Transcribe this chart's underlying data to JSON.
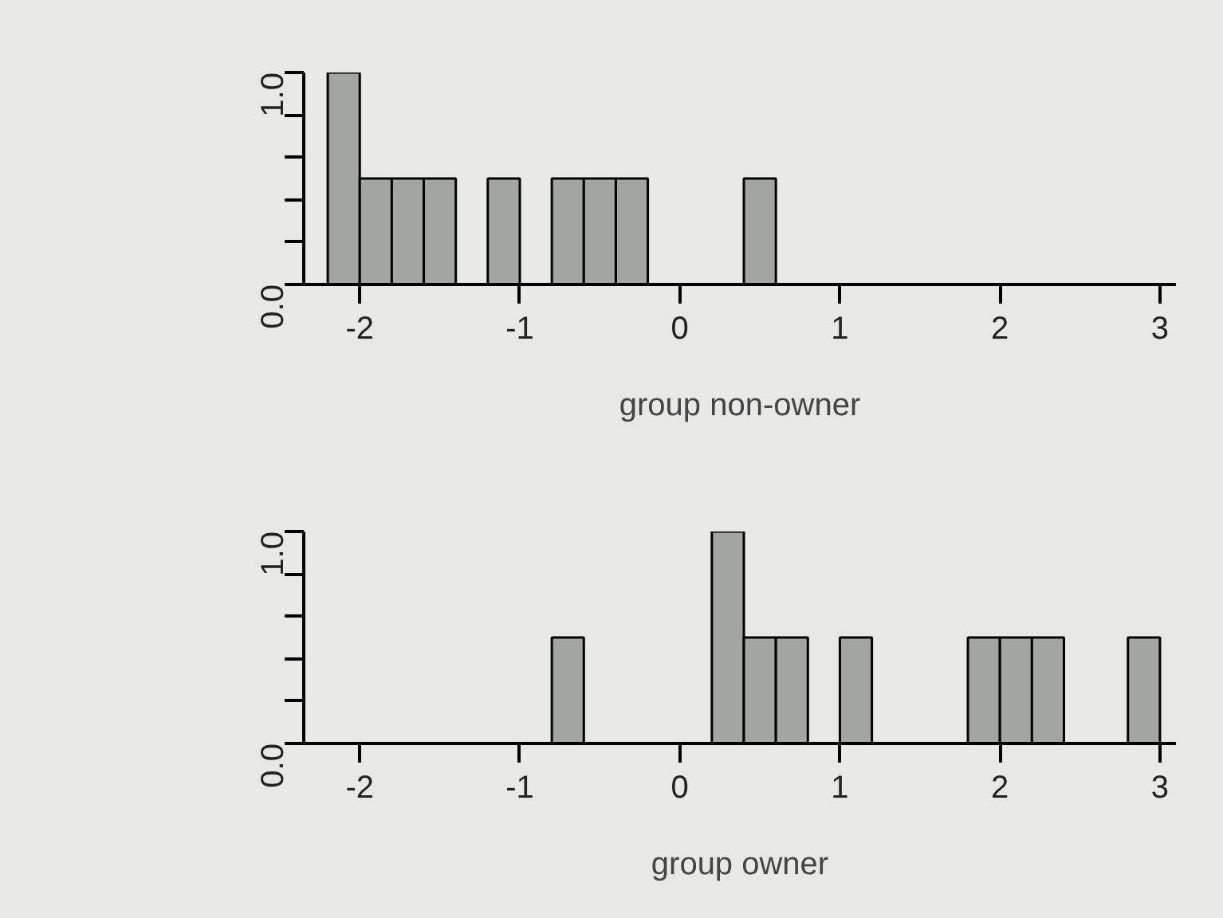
{
  "chart_data": [
    {
      "type": "histogram",
      "xlabel": "group non-owner",
      "bins": [
        -2.2,
        -2.0,
        -1.8,
        -1.6,
        -1.4,
        -1.2,
        -1.0,
        -0.8,
        -0.6,
        -0.4,
        -0.2,
        0.0,
        0.2,
        0.4,
        0.6,
        0.8,
        1.0,
        1.2,
        1.4,
        1.6,
        1.8,
        2.0,
        2.2,
        2.4,
        2.6,
        2.8,
        3.0
      ],
      "values": [
        1.0,
        0.5,
        0.5,
        0.5,
        0,
        0.5,
        0,
        0.5,
        0.5,
        0.5,
        0,
        0,
        0,
        0.5,
        0,
        0,
        0,
        0,
        0,
        0,
        0,
        0,
        0,
        0,
        0,
        0
      ],
      "color": "#a3a5a3",
      "xlim": [
        -2.35,
        3.1
      ],
      "ylim": [
        0,
        1.0
      ],
      "xticks": [
        -2,
        -1,
        0,
        1,
        2,
        3
      ],
      "yticks": [
        {
          "value": 0,
          "label": "0.0"
        },
        {
          "value": 0.2,
          "label": null
        },
        {
          "value": 0.4,
          "label": null
        },
        {
          "value": 0.6,
          "label": null
        },
        {
          "value": 0.8,
          "label": null
        },
        {
          "value": 1.0,
          "label": "1.0"
        }
      ]
    },
    {
      "type": "histogram",
      "xlabel": "group owner",
      "bins": [
        -2.2,
        -2.0,
        -1.8,
        -1.6,
        -1.4,
        -1.2,
        -1.0,
        -0.8,
        -0.6,
        -0.4,
        -0.2,
        0.0,
        0.2,
        0.4,
        0.6,
        0.8,
        1.0,
        1.2,
        1.4,
        1.6,
        1.8,
        2.0,
        2.2,
        2.4,
        2.6,
        2.8,
        3.0
      ],
      "values": [
        0,
        0,
        0,
        0,
        0,
        0,
        0,
        0.5,
        0,
        0,
        0,
        0,
        1.0,
        0.5,
        0.5,
        0,
        0.5,
        0,
        0,
        0,
        0.5,
        0.5,
        0.5,
        0,
        0,
        0.5
      ],
      "color": "#a3a5a3",
      "xlim": [
        -2.35,
        3.1
      ],
      "ylim": [
        0,
        1.0
      ],
      "xticks": [
        -2,
        -1,
        0,
        1,
        2,
        3
      ],
      "yticks": [
        {
          "value": 0,
          "label": "0.0"
        },
        {
          "value": 0.2,
          "label": null
        },
        {
          "value": 0.4,
          "label": null
        },
        {
          "value": 0.6,
          "label": null
        },
        {
          "value": 0.8,
          "label": null
        },
        {
          "value": 1.0,
          "label": "1.0"
        }
      ]
    }
  ]
}
